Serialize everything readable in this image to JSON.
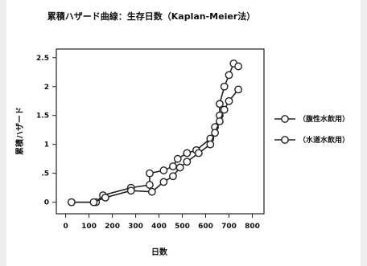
{
  "chart_data": {
    "type": "line",
    "title": "累積ハザード曲線：生存日数（Kaplan-Meier法）",
    "xlabel": "日数",
    "ylabel": "累積ハザード",
    "xlim": [
      -40,
      850
    ],
    "ylim": [
      -0.2,
      2.65
    ],
    "x_ticks": [
      0,
      100,
      200,
      300,
      400,
      500,
      600,
      700,
      800
    ],
    "x_tick_labels": [
      "0",
      "100",
      "200",
      "300",
      "400",
      "500",
      "600",
      "700",
      "800"
    ],
    "y_ticks": [
      0,
      0.5,
      1,
      1.5,
      2,
      2.5
    ],
    "y_tick_labels": [
      "0",
      ".5",
      "1",
      "1.5",
      "2",
      "2.5"
    ],
    "grid": false,
    "legend_position": "right",
    "series": [
      {
        "name": "（腹性水飲用）",
        "color": "#222222",
        "x": [
          25,
          130,
          160,
          280,
          360,
          360,
          420,
          460,
          480,
          520,
          560,
          620,
          640,
          660,
          660,
          680,
          700,
          720,
          740
        ],
        "y": [
          0.0,
          0.0,
          0.12,
          0.25,
          0.3,
          0.5,
          0.55,
          0.62,
          0.75,
          0.85,
          0.9,
          1.1,
          1.3,
          1.5,
          1.7,
          2.0,
          2.2,
          2.4,
          2.35
        ]
      },
      {
        "name": "（水道水飲用）",
        "color": "#222222",
        "x": [
          25,
          120,
          170,
          280,
          370,
          420,
          460,
          490,
          520,
          570,
          620,
          640,
          660,
          680,
          700,
          740
        ],
        "y": [
          0.0,
          0.0,
          0.08,
          0.2,
          0.18,
          0.35,
          0.45,
          0.6,
          0.7,
          0.85,
          1.0,
          1.2,
          1.4,
          1.6,
          1.75,
          1.95
        ]
      }
    ]
  }
}
